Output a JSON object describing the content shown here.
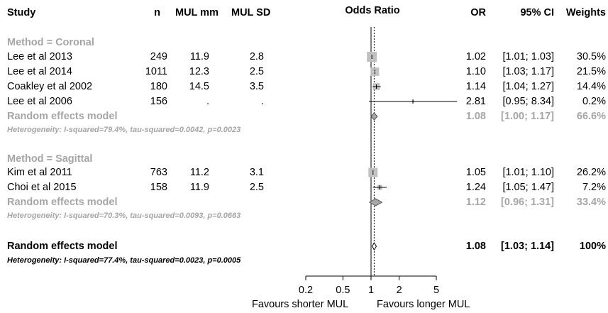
{
  "header": {
    "study": "Study",
    "n": "n",
    "mul_mm": "MUL mm",
    "mul_sd": "MUL SD",
    "odds_ratio": "Odds Ratio",
    "or": "OR",
    "ci": "95% CI",
    "weights": "Weights"
  },
  "groups": [
    {
      "label": "Method = Coronal",
      "studies": [
        {
          "study": "Lee et al 2013",
          "n": "249",
          "mm": "11.9",
          "sd": "2.8",
          "or": "1.02",
          "ci": "[1.01; 1.03]",
          "weight": "30.5%"
        },
        {
          "study": "Lee et al 2014",
          "n": "1011",
          "mm": "12.3",
          "sd": "2.5",
          "or": "1.10",
          "ci": "[1.03; 1.17]",
          "weight": "21.5%"
        },
        {
          "study": "Coakley et al 2002",
          "n": "180",
          "mm": "14.5",
          "sd": "3.5",
          "or": "1.14",
          "ci": "[1.04; 1.27]",
          "weight": "14.4%"
        },
        {
          "study": "Lee et al 2006",
          "n": "156",
          "mm": ".",
          "sd": ".",
          "or": "2.81",
          "ci": "[0.95; 8.34]",
          "weight": "0.2%"
        }
      ],
      "model": {
        "label": "Random effects model",
        "or": "1.08",
        "ci": "[1.00; 1.17]",
        "weight": "66.6%"
      },
      "heterogeneity": "Heterogeneity: I-squared=79.4%, tau-squared=0.0042, p=0.0023"
    },
    {
      "label": "Method = Sagittal",
      "studies": [
        {
          "study": "Kim et al 2011",
          "n": "763",
          "mm": "11.2",
          "sd": "3.1",
          "or": "1.05",
          "ci": "[1.01; 1.10]",
          "weight": "26.2%"
        },
        {
          "study": "Choi et al 2015",
          "n": "158",
          "mm": "11.9",
          "sd": "2.5",
          "or": "1.24",
          "ci": "[1.05; 1.47]",
          "weight": "7.2%"
        }
      ],
      "model": {
        "label": "Random effects model",
        "or": "1.12",
        "ci": "[0.96; 1.31]",
        "weight": "33.4%"
      },
      "heterogeneity": "Heterogeneity: I-squared=70.3%, tau-squared=0.0093, p=0.0663"
    }
  ],
  "overall": {
    "label": "Random effects model",
    "or": "1.08",
    "ci": "[1.03; 1.14]",
    "weight": "100%",
    "heterogeneity": "Heterogeneity: I-squared=77.4%, tau-squared=0.0023, p=0.0005"
  },
  "axis": {
    "ticks": [
      "0.2",
      "0.5",
      "1",
      "2",
      "5"
    ],
    "label_left": "Favours shorter MUL",
    "label_right": "Favours longer MUL"
  },
  "colors": {
    "subgroup": "#a6a6a6",
    "box": "#c0c0c0",
    "diamond": "#a6a6a6",
    "text": "#000000"
  },
  "chart_data": {
    "type": "forest",
    "scale": "log",
    "xlim": [
      0.2,
      5
    ],
    "x_ticks": [
      0.2,
      0.5,
      1,
      2,
      5
    ],
    "reference_line": 1,
    "overall_line": 1.08,
    "studies": [
      {
        "name": "Lee et al 2013",
        "group": "Method = Coronal",
        "or": 1.02,
        "lower": 1.01,
        "upper": 1.03,
        "weight": 30.5
      },
      {
        "name": "Lee et al 2014",
        "group": "Method = Coronal",
        "or": 1.1,
        "lower": 1.03,
        "upper": 1.17,
        "weight": 21.5
      },
      {
        "name": "Coakley et al 2002",
        "group": "Method = Coronal",
        "or": 1.14,
        "lower": 1.04,
        "upper": 1.27,
        "weight": 14.4
      },
      {
        "name": "Lee et al 2006",
        "group": "Method = Coronal",
        "or": 2.81,
        "lower": 0.95,
        "upper": 8.34,
        "weight": 0.2
      },
      {
        "name": "Kim et al 2011",
        "group": "Method = Sagittal",
        "or": 1.05,
        "lower": 1.01,
        "upper": 1.1,
        "weight": 26.2
      },
      {
        "name": "Choi et al 2015",
        "group": "Method = Sagittal",
        "or": 1.24,
        "lower": 1.05,
        "upper": 1.47,
        "weight": 7.2
      }
    ],
    "models": [
      {
        "name": "Random effects model",
        "group": "Method = Coronal",
        "or": 1.08,
        "lower": 1.0,
        "upper": 1.17
      },
      {
        "name": "Random effects model",
        "group": "Method = Sagittal",
        "or": 1.12,
        "lower": 0.96,
        "upper": 1.31
      },
      {
        "name": "Random effects model",
        "group": "Overall",
        "or": 1.08,
        "lower": 1.03,
        "upper": 1.14
      }
    ]
  }
}
